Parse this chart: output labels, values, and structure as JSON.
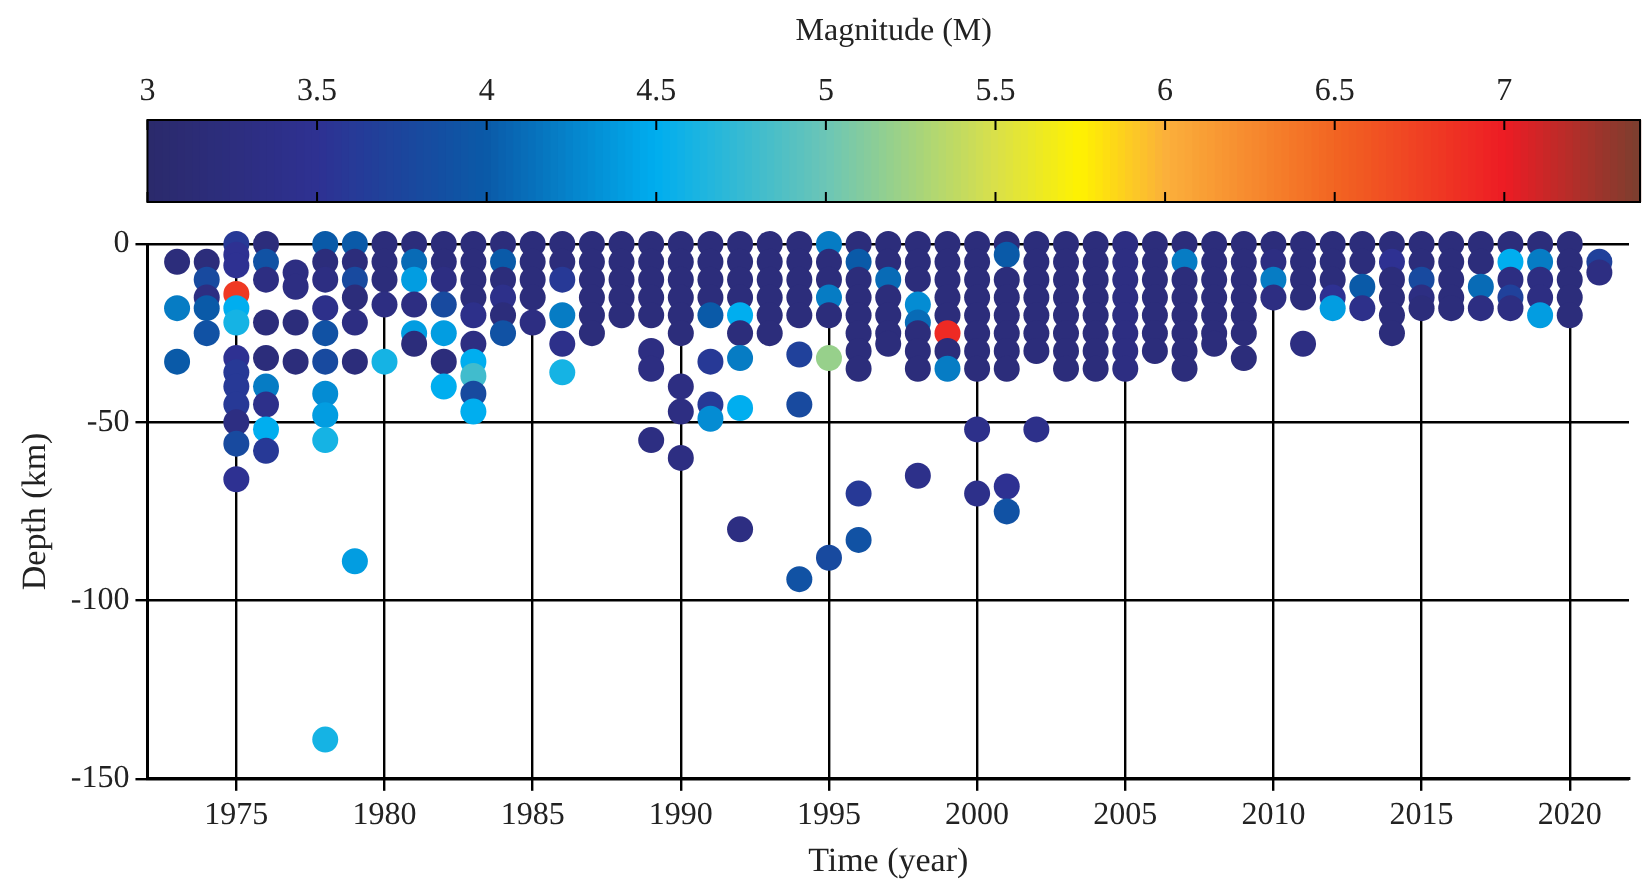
{
  "chart_data": {
    "type": "scatter",
    "xlabel": "Time (year)",
    "ylabel": "Depth (km)",
    "clabel": "Magnitude (M)",
    "xlim": [
      1972,
      2022
    ],
    "xticks": [
      1975,
      1980,
      1985,
      1990,
      1995,
      2000,
      2005,
      2010,
      2015,
      2020
    ],
    "ylim": [
      -150,
      0
    ],
    "yticks": [
      -150,
      -100,
      -50,
      0
    ],
    "clim": [
      3,
      7.4
    ],
    "cticks": [
      3,
      3.5,
      4,
      4.5,
      5,
      5.5,
      6,
      6.5,
      7
    ],
    "grid": true,
    "marker": "circle",
    "x": [
      1973,
      1973,
      1973,
      1974,
      1974,
      1974,
      1974,
      1974,
      1975,
      1975,
      1975,
      1975,
      1975,
      1975,
      1975,
      1975,
      1975,
      1975,
      1975,
      1975,
      1975,
      1976,
      1976,
      1976,
      1976,
      1976,
      1976,
      1976,
      1976,
      1976,
      1977,
      1977,
      1977,
      1977,
      1978,
      1978,
      1978,
      1978,
      1978,
      1978,
      1978,
      1978,
      1978,
      1978,
      1979,
      1979,
      1979,
      1979,
      1979,
      1979,
      1979,
      1980,
      1980,
      1980,
      1980,
      1980,
      1981,
      1981,
      1981,
      1981,
      1981,
      1981,
      1982,
      1982,
      1982,
      1982,
      1982,
      1982,
      1982,
      1983,
      1983,
      1983,
      1983,
      1983,
      1983,
      1983,
      1983,
      1983,
      1983,
      1984,
      1984,
      1984,
      1984,
      1984,
      1984,
      1985,
      1985,
      1985,
      1985,
      1985,
      1986,
      1986,
      1986,
      1986,
      1986,
      1986,
      1987,
      1987,
      1987,
      1987,
      1987,
      1987,
      1988,
      1988,
      1988,
      1988,
      1988,
      1989,
      1989,
      1989,
      1989,
      1989,
      1989,
      1989,
      1989,
      1990,
      1990,
      1990,
      1990,
      1990,
      1990,
      1990,
      1990,
      1990,
      1991,
      1991,
      1991,
      1991,
      1991,
      1991,
      1991,
      1991,
      1992,
      1992,
      1992,
      1992,
      1992,
      1992,
      1992,
      1992,
      1992,
      1993,
      1993,
      1993,
      1993,
      1993,
      1993,
      1994,
      1994,
      1994,
      1994,
      1994,
      1994,
      1994,
      1994,
      1995,
      1995,
      1995,
      1995,
      1995,
      1995,
      1995,
      1996,
      1996,
      1996,
      1996,
      1996,
      1996,
      1996,
      1996,
      1996,
      1996,
      1997,
      1997,
      1997,
      1997,
      1997,
      1997,
      1997,
      1998,
      1998,
      1998,
      1998,
      1998,
      1998,
      1998,
      1998,
      1998,
      1999,
      1999,
      1999,
      1999,
      1999,
      1999,
      1999,
      1999,
      2000,
      2000,
      2000,
      2000,
      2000,
      2000,
      2000,
      2000,
      2000,
      2000,
      2001,
      2001,
      2001,
      2001,
      2001,
      2001,
      2001,
      2001,
      2001,
      2001,
      2002,
      2002,
      2002,
      2002,
      2002,
      2002,
      2002,
      2002,
      2003,
      2003,
      2003,
      2003,
      2003,
      2003,
      2003,
      2003,
      2004,
      2004,
      2004,
      2004,
      2004,
      2004,
      2004,
      2004,
      2005,
      2005,
      2005,
      2005,
      2005,
      2005,
      2005,
      2005,
      2006,
      2006,
      2006,
      2006,
      2006,
      2006,
      2006,
      2007,
      2007,
      2007,
      2007,
      2007,
      2007,
      2007,
      2007,
      2008,
      2008,
      2008,
      2008,
      2008,
      2008,
      2008,
      2009,
      2009,
      2009,
      2009,
      2009,
      2009,
      2009,
      2010,
      2010,
      2010,
      2010,
      2011,
      2011,
      2011,
      2011,
      2011,
      2012,
      2012,
      2012,
      2012,
      2012,
      2013,
      2013,
      2013,
      2013,
      2014,
      2014,
      2014,
      2014,
      2014,
      2014,
      2015,
      2015,
      2015,
      2015,
      2015,
      2016,
      2016,
      2016,
      2016,
      2016,
      2017,
      2017,
      2017,
      2017,
      2018,
      2018,
      2018,
      2018,
      2018,
      2019,
      2019,
      2019,
      2019,
      2019,
      2020,
      2020,
      2020,
      2020,
      2020,
      2021,
      2021
    ],
    "values": [
      -5,
      -18,
      -33,
      -5,
      -10,
      -15,
      -18,
      -25,
      0,
      -3,
      -6,
      -14,
      -18,
      -22,
      -32,
      -36,
      -40,
      -45,
      -50,
      -56,
      -66,
      0,
      -5,
      -10,
      -22,
      -32,
      -40,
      -45,
      -52,
      -58,
      -8,
      -12,
      -22,
      -33,
      0,
      -5,
      -10,
      -18,
      -25,
      -33,
      -42,
      -48,
      -55,
      -139,
      0,
      -5,
      -10,
      -15,
      -22,
      -33,
      -89,
      0,
      -5,
      -10,
      -17,
      -33,
      0,
      -5,
      -10,
      -17,
      -25,
      -28,
      0,
      -5,
      -10,
      -17,
      -25,
      -33,
      -40,
      0,
      -5,
      -10,
      -15,
      -20,
      -28,
      -33,
      -37,
      -42,
      -47,
      0,
      -5,
      -10,
      -15,
      -20,
      -25,
      0,
      -5,
      -10,
      -15,
      -22,
      0,
      -5,
      -10,
      -20,
      -28,
      -36,
      0,
      -5,
      -10,
      -15,
      -20,
      -25,
      0,
      -5,
      -10,
      -15,
      -20,
      0,
      -5,
      -10,
      -15,
      -20,
      -30,
      -35,
      -55,
      0,
      -5,
      -10,
      -15,
      -20,
      -25,
      -40,
      -47,
      -60,
      0,
      -5,
      -10,
      -15,
      -20,
      -33,
      -45,
      -49,
      0,
      -5,
      -10,
      -15,
      -20,
      -25,
      -32,
      -46,
      -80,
      0,
      -5,
      -10,
      -15,
      -20,
      -25,
      0,
      -5,
      -10,
      -15,
      -20,
      -31,
      -45,
      -94,
      0,
      -5,
      -10,
      -15,
      -20,
      -32,
      -88,
      0,
      -5,
      -10,
      -15,
      -20,
      -25,
      -30,
      -35,
      -70,
      -83,
      0,
      -5,
      -10,
      -15,
      -20,
      -25,
      -28,
      0,
      -5,
      -10,
      -17,
      -22,
      -25,
      -30,
      -35,
      -65,
      0,
      -5,
      -10,
      -15,
      -20,
      -25,
      -30,
      -35,
      0,
      -5,
      -10,
      -15,
      -20,
      -25,
      -30,
      -35,
      -52,
      -70,
      0,
      -3,
      -10,
      -15,
      -20,
      -25,
      -30,
      -35,
      -68,
      -75,
      0,
      -5,
      -10,
      -15,
      -20,
      -25,
      -30,
      -52,
      0,
      -5,
      -10,
      -15,
      -20,
      -25,
      -30,
      -35,
      0,
      -5,
      -10,
      -15,
      -20,
      -25,
      -30,
      -35,
      0,
      -5,
      -10,
      -15,
      -20,
      -25,
      -30,
      -35,
      0,
      -5,
      -10,
      -15,
      -20,
      -25,
      -30,
      0,
      -5,
      -10,
      -15,
      -20,
      -25,
      -30,
      -35,
      0,
      -5,
      -10,
      -15,
      -20,
      -25,
      -28,
      0,
      -5,
      -10,
      -15,
      -20,
      -25,
      -32,
      0,
      -5,
      -10,
      -15,
      0,
      -5,
      -10,
      -15,
      -28,
      0,
      -5,
      -10,
      -15,
      -18,
      0,
      -5,
      -12,
      -18,
      0,
      -5,
      -10,
      -15,
      -20,
      -25,
      0,
      -5,
      -10,
      -15,
      -18,
      0,
      -5,
      -10,
      -15,
      -18,
      0,
      -5,
      -12,
      -18,
      0,
      -5,
      -10,
      -15,
      -18,
      0,
      -5,
      -10,
      -15,
      -20,
      0,
      -5,
      -10,
      -15,
      -20,
      -5,
      -8
    ],
    "cvalues": [
      3.2,
      4.2,
      4.0,
      3.2,
      3.8,
      3.3,
      4.0,
      3.9,
      3.6,
      3.5,
      3.5,
      6.8,
      4.5,
      4.6,
      3.5,
      3.6,
      3.6,
      3.6,
      3.3,
      3.8,
      3.5,
      3.2,
      3.9,
      3.3,
      3.2,
      3.2,
      4.2,
      3.4,
      4.5,
      3.6,
      3.3,
      3.3,
      3.2,
      3.2,
      4.0,
      3.2,
      3.3,
      3.4,
      3.9,
      3.8,
      4.3,
      4.4,
      4.6,
      4.6,
      4.0,
      3.2,
      3.8,
      3.2,
      3.3,
      3.2,
      4.4,
      3.2,
      3.2,
      3.2,
      3.3,
      4.6,
      3.2,
      4.1,
      4.4,
      3.3,
      4.4,
      3.2,
      3.2,
      3.2,
      3.3,
      3.8,
      4.4,
      3.2,
      4.5,
      3.2,
      3.2,
      3.2,
      3.2,
      3.4,
      3.3,
      4.5,
      4.8,
      3.8,
      4.5,
      3.2,
      4.0,
      3.2,
      3.4,
      3.2,
      3.9,
      3.2,
      3.2,
      3.2,
      3.2,
      3.3,
      3.2,
      3.2,
      3.6,
      4.2,
      3.4,
      4.6,
      3.2,
      3.2,
      3.2,
      3.2,
      3.2,
      3.2,
      3.2,
      3.2,
      3.2,
      3.2,
      3.2,
      3.2,
      3.2,
      3.2,
      3.2,
      3.2,
      3.3,
      3.3,
      3.3,
      3.2,
      3.2,
      3.2,
      3.2,
      3.2,
      3.2,
      3.3,
      3.3,
      3.3,
      3.2,
      3.2,
      3.2,
      3.2,
      4.0,
      3.6,
      3.6,
      4.3,
      3.2,
      3.2,
      3.2,
      3.2,
      4.5,
      3.2,
      4.2,
      4.5,
      3.3,
      3.2,
      3.2,
      3.2,
      3.2,
      3.2,
      3.2,
      3.2,
      3.2,
      3.2,
      3.2,
      3.2,
      3.7,
      3.8,
      3.9,
      4.2,
      3.2,
      3.2,
      4.2,
      3.2,
      5.2,
      3.8,
      3.2,
      4.0,
      3.2,
      3.2,
      3.2,
      3.2,
      3.2,
      3.2,
      3.6,
      3.9,
      3.2,
      3.2,
      4.1,
      3.2,
      3.2,
      3.2,
      3.2,
      3.2,
      3.2,
      3.2,
      4.3,
      4.1,
      3.2,
      3.2,
      3.2,
      3.4,
      3.2,
      3.2,
      3.2,
      3.2,
      3.2,
      6.9,
      3.2,
      4.2,
      3.2,
      3.2,
      3.2,
      3.2,
      3.2,
      3.2,
      3.2,
      3.2,
      3.4,
      3.4,
      3.2,
      4.0,
      3.2,
      3.2,
      3.2,
      3.2,
      3.2,
      3.2,
      3.5,
      3.9,
      3.2,
      3.2,
      3.2,
      3.2,
      3.2,
      3.2,
      3.2,
      3.4,
      3.2,
      3.2,
      3.2,
      3.2,
      3.2,
      3.2,
      3.2,
      3.2,
      3.2,
      3.2,
      3.2,
      3.2,
      3.2,
      3.2,
      3.2,
      3.2,
      3.3,
      3.3,
      3.3,
      3.3,
      3.3,
      3.3,
      3.3,
      3.3,
      3.2,
      3.2,
      3.2,
      3.2,
      3.2,
      3.2,
      3.2,
      3.2,
      4.2,
      3.2,
      3.2,
      3.2,
      3.2,
      3.2,
      3.2,
      3.2,
      3.2,
      3.2,
      3.2,
      3.2,
      3.2,
      3.2,
      3.2,
      3.2,
      3.2,
      3.2,
      3.2,
      3.2,
      3.2,
      3.2,
      3.3,
      4.2,
      3.3,
      3.2,
      3.2,
      3.2,
      3.2,
      3.3,
      3.2,
      3.2,
      3.2,
      3.5,
      4.4,
      3.2,
      3.2,
      4.0,
      3.4,
      3.2,
      3.5,
      3.2,
      3.2,
      3.2,
      3.2,
      3.2,
      3.2,
      3.8,
      3.3,
      3.2,
      3.2,
      3.2,
      3.2,
      3.2,
      3.2,
      3.2,
      3.2,
      4.1,
      3.3,
      3.2,
      4.5,
      3.3,
      3.7,
      3.3,
      3.2,
      4.2,
      3.3,
      3.3,
      4.4,
      3.2,
      3.2,
      3.2,
      3.2,
      3.2,
      3.7,
      3.3
    ]
  }
}
